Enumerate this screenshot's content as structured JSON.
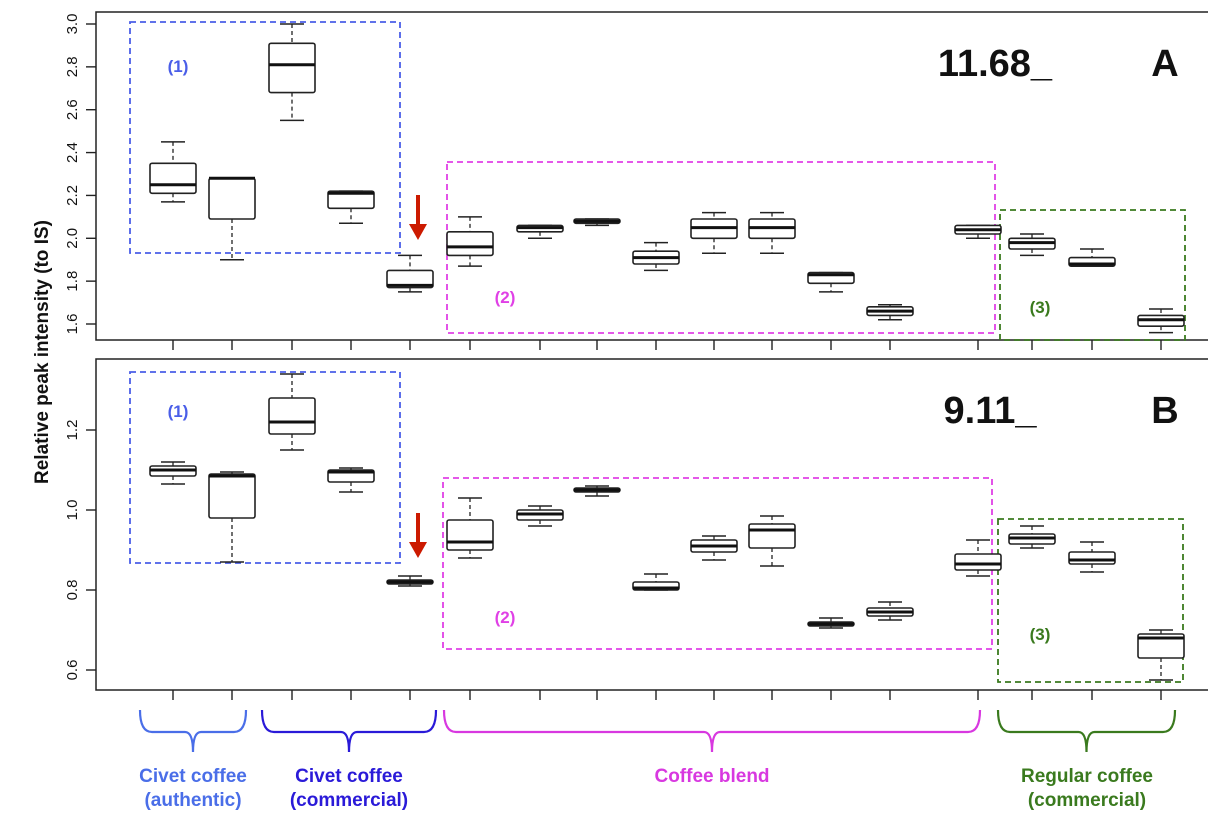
{
  "figure": {
    "ylabel": "Relative peak intensity (to IS)"
  },
  "chart_data": [
    {
      "type": "box",
      "panel": "A",
      "title": "11.68_",
      "ylabel": "Relative peak intensity (to IS)",
      "ylim": [
        1.53,
        3.05
      ],
      "yticks": [
        "1.6",
        "1.8",
        "2.0",
        "2.2",
        "2.4",
        "2.6",
        "2.8",
        "3.0"
      ],
      "boxes": [
        {
          "min": 2.17,
          "q1": 2.21,
          "median": 2.25,
          "q3": 2.35,
          "max": 2.45
        },
        {
          "min": 1.9,
          "q1": 2.09,
          "median": 2.28,
          "q3": 2.28,
          "max": 2.28
        },
        {
          "min": 2.55,
          "q1": 2.68,
          "median": 2.81,
          "q3": 2.91,
          "max": 3.0
        },
        {
          "min": 2.07,
          "q1": 2.14,
          "median": 2.21,
          "q3": 2.22,
          "max": 2.22
        },
        {
          "min": 1.75,
          "q1": 1.77,
          "median": 1.78,
          "q3": 1.85,
          "max": 1.92
        },
        {
          "min": 1.87,
          "q1": 1.92,
          "median": 1.96,
          "q3": 2.03,
          "max": 2.1
        },
        {
          "min": 2.0,
          "q1": 2.03,
          "median": 2.05,
          "q3": 2.06,
          "max": 2.06
        },
        {
          "min": 2.06,
          "q1": 2.07,
          "median": 2.08,
          "q3": 2.09,
          "max": 2.09
        },
        {
          "min": 1.85,
          "q1": 1.88,
          "median": 1.91,
          "q3": 1.94,
          "max": 1.98
        },
        {
          "min": 1.93,
          "q1": 2.0,
          "median": 2.05,
          "q3": 2.09,
          "max": 2.12
        },
        {
          "min": 1.93,
          "q1": 2.0,
          "median": 2.05,
          "q3": 2.09,
          "max": 2.12
        },
        {
          "min": 1.75,
          "q1": 1.79,
          "median": 1.83,
          "q3": 1.84,
          "max": 1.84
        },
        {
          "min": 1.62,
          "q1": 1.64,
          "median": 1.66,
          "q3": 1.68,
          "max": 1.69
        },
        {
          "min": 2.0,
          "q1": 2.02,
          "median": 2.04,
          "q3": 2.06,
          "max": 2.06
        },
        {
          "min": 1.92,
          "q1": 1.95,
          "median": 1.98,
          "q3": 2.0,
          "max": 2.02
        },
        {
          "min": 1.87,
          "q1": 1.87,
          "median": 1.88,
          "q3": 1.91,
          "max": 1.95
        },
        {
          "min": 1.56,
          "q1": 1.59,
          "median": 1.62,
          "q3": 1.64,
          "max": 1.67
        }
      ],
      "regions": [
        {
          "label": "(1)",
          "color": "#4a5ee8"
        },
        {
          "label": "(2)",
          "color": "#e040e6"
        },
        {
          "label": "(3)",
          "color": "#3a7a1e"
        }
      ],
      "highlight_box": 5,
      "arrow_color": "#cc1a00"
    },
    {
      "type": "box",
      "panel": "B",
      "title": "9.11_",
      "ylabel": "Relative peak intensity (to IS)",
      "ylim": [
        0.55,
        1.37
      ],
      "yticks": [
        "0.6",
        "0.8",
        "1.0",
        "1.2"
      ],
      "boxes": [
        {
          "min": 1.065,
          "q1": 1.085,
          "median": 1.1,
          "q3": 1.11,
          "max": 1.12
        },
        {
          "min": 0.87,
          "q1": 0.98,
          "median": 1.085,
          "q3": 1.09,
          "max": 1.095
        },
        {
          "min": 1.15,
          "q1": 1.19,
          "median": 1.22,
          "q3": 1.28,
          "max": 1.34
        },
        {
          "min": 1.045,
          "q1": 1.07,
          "median": 1.095,
          "q3": 1.1,
          "max": 1.105
        },
        {
          "min": 0.81,
          "q1": 0.815,
          "median": 0.82,
          "q3": 0.825,
          "max": 0.835
        },
        {
          "min": 0.88,
          "q1": 0.9,
          "median": 0.92,
          "q3": 0.975,
          "max": 1.03
        },
        {
          "min": 0.96,
          "q1": 0.975,
          "median": 0.99,
          "q3": 1.0,
          "max": 1.01
        },
        {
          "min": 1.035,
          "q1": 1.045,
          "median": 1.05,
          "q3": 1.055,
          "max": 1.06
        },
        {
          "min": 0.8,
          "q1": 0.8,
          "median": 0.805,
          "q3": 0.82,
          "max": 0.84
        },
        {
          "min": 0.875,
          "q1": 0.895,
          "median": 0.91,
          "q3": 0.925,
          "max": 0.935
        },
        {
          "min": 0.86,
          "q1": 0.905,
          "median": 0.95,
          "q3": 0.965,
          "max": 0.985
        },
        {
          "min": 0.705,
          "q1": 0.71,
          "median": 0.715,
          "q3": 0.72,
          "max": 0.73
        },
        {
          "min": 0.725,
          "q1": 0.735,
          "median": 0.745,
          "q3": 0.755,
          "max": 0.77
        },
        {
          "min": 0.835,
          "q1": 0.85,
          "median": 0.865,
          "q3": 0.89,
          "max": 0.925
        },
        {
          "min": 0.905,
          "q1": 0.915,
          "median": 0.93,
          "q3": 0.94,
          "max": 0.96
        },
        {
          "min": 0.845,
          "q1": 0.865,
          "median": 0.875,
          "q3": 0.895,
          "max": 0.92
        },
        {
          "min": 0.575,
          "q1": 0.63,
          "median": 0.68,
          "q3": 0.69,
          "max": 0.7
        }
      ],
      "regions": [
        {
          "label": "(1)",
          "color": "#4a5ee8"
        },
        {
          "label": "(2)",
          "color": "#e040e6"
        },
        {
          "label": "(3)",
          "color": "#3a7a1e"
        }
      ],
      "highlight_box": 5,
      "arrow_color": "#cc1a00"
    }
  ],
  "groups": [
    {
      "lines": [
        "Civet coffee",
        "(authentic)"
      ],
      "color": "#4a6ee8"
    },
    {
      "lines": [
        "Civet coffee",
        "(commercial)"
      ],
      "color": "#2a1ad8"
    },
    {
      "lines": [
        "Coffee blend"
      ],
      "color": "#d838e0"
    },
    {
      "lines": [
        "Regular coffee",
        "(commercial)"
      ],
      "color": "#3a7a1e"
    }
  ]
}
